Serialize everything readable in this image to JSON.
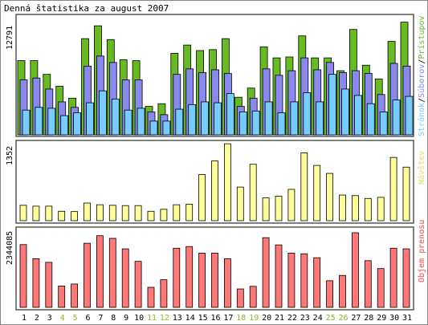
{
  "title": "Denná štatistika za august 2007",
  "colors": {
    "hits": "#66bb22",
    "files": "#8888ee",
    "pages": "#77ccff",
    "visits": "#ffff99",
    "traffic": "#ff7777",
    "weekend_label": "#88bb22",
    "weekday_label": "#000000",
    "panel_border": "#555555",
    "frame": "#888888"
  },
  "legend": {
    "top": {
      "pages": "Stránok",
      "sep1": "/",
      "files": "Súborov",
      "sep2": "/",
      "hits": "Prístupov"
    },
    "middle": "Návštev",
    "bottom": "Objem prenosu"
  },
  "chart_data": [
    {
      "type": "bar",
      "title": "Denná štatistika za august 2007",
      "categories": [
        "1",
        "2",
        "3",
        "4",
        "5",
        "6",
        "7",
        "8",
        "9",
        "10",
        "11",
        "12",
        "13",
        "14",
        "15",
        "16",
        "17",
        "18",
        "19",
        "20",
        "21",
        "22",
        "23",
        "24",
        "25",
        "26",
        "27",
        "28",
        "29",
        "30",
        "31"
      ],
      "weekend_days": [
        "4",
        "5",
        "11",
        "12",
        "18",
        "19",
        "25",
        "26"
      ],
      "ymax_label": "12791",
      "ylim": [
        0,
        12791
      ],
      "series": [
        {
          "name": "Prístupov",
          "values": [
            8100,
            8100,
            6600,
            5300,
            4000,
            10500,
            11900,
            10400,
            8200,
            8100,
            3100,
            3400,
            8900,
            9800,
            9200,
            9300,
            10500,
            4100,
            5100,
            9600,
            8400,
            8500,
            10800,
            8400,
            8400,
            7000,
            11500,
            7600,
            6100,
            10200,
            12300
          ]
        },
        {
          "name": "Súborov",
          "values": [
            6000,
            6200,
            5000,
            3600,
            3000,
            7500,
            8600,
            7900,
            6000,
            6000,
            2500,
            2200,
            6600,
            7200,
            6800,
            7100,
            6700,
            3100,
            4000,
            7200,
            6500,
            7000,
            8400,
            7100,
            7900,
            6800,
            7000,
            6700,
            4400,
            7800,
            7500
          ]
        },
        {
          "name": "Stránok",
          "values": [
            2700,
            3000,
            2900,
            2100,
            2400,
            3500,
            4800,
            3900,
            2700,
            2900,
            1500,
            1500,
            2800,
            3300,
            3600,
            3500,
            4500,
            2500,
            2600,
            3600,
            2400,
            3600,
            4600,
            3600,
            6600,
            5000,
            4300,
            3400,
            2500,
            3800,
            4200
          ]
        }
      ]
    },
    {
      "type": "bar",
      "categories": [
        "1",
        "2",
        "3",
        "4",
        "5",
        "6",
        "7",
        "8",
        "9",
        "10",
        "11",
        "12",
        "13",
        "14",
        "15",
        "16",
        "17",
        "18",
        "19",
        "20",
        "21",
        "22",
        "23",
        "24",
        "25",
        "26",
        "27",
        "28",
        "29",
        "30",
        "31"
      ],
      "ymax_label": "1352",
      "ylim": [
        0,
        1352
      ],
      "series": [
        {
          "name": "Návštev",
          "values": [
            270,
            255,
            255,
            165,
            160,
            310,
            280,
            270,
            265,
            265,
            165,
            200,
            280,
            290,
            810,
            1050,
            1350,
            590,
            990,
            400,
            430,
            550,
            1190,
            970,
            830,
            450,
            440,
            390,
            410,
            1110,
            940
          ]
        }
      ]
    },
    {
      "type": "bar",
      "categories": [
        "1",
        "2",
        "3",
        "4",
        "5",
        "6",
        "7",
        "8",
        "9",
        "10",
        "11",
        "12",
        "13",
        "14",
        "15",
        "16",
        "17",
        "18",
        "19",
        "20",
        "21",
        "22",
        "23",
        "24",
        "25",
        "26",
        "27",
        "28",
        "29",
        "30",
        "31"
      ],
      "ymax_label": "2344085",
      "ylim": [
        0,
        2344085
      ],
      "series": [
        {
          "name": "Objem prenosu",
          "values": [
            1910000,
            1480000,
            1370000,
            650000,
            710000,
            1950000,
            2180000,
            2100000,
            1780000,
            1400000,
            610000,
            840000,
            1800000,
            1850000,
            1650000,
            1650000,
            1480000,
            560000,
            640000,
            2120000,
            1900000,
            1650000,
            1630000,
            1510000,
            810000,
            970000,
            2270000,
            1420000,
            1180000,
            1800000,
            1780000
          ]
        }
      ]
    }
  ]
}
